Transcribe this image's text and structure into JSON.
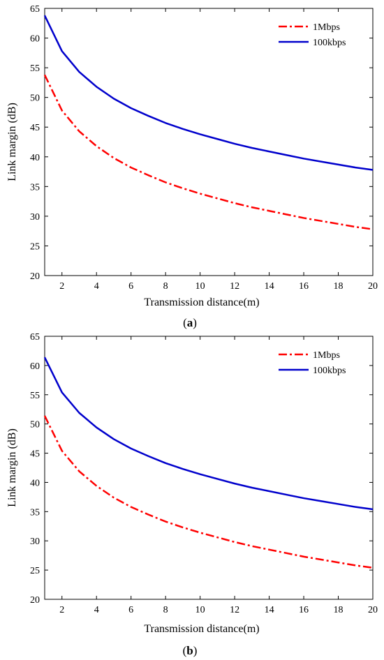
{
  "chart_data": [
    {
      "type": "line",
      "panel_label": "a",
      "xlabel": "Transmission distance(m)",
      "ylabel": "Link margin (dB)",
      "xlim": [
        1,
        20
      ],
      "ylim": [
        20,
        65
      ],
      "xticks": [
        2,
        4,
        6,
        8,
        10,
        12,
        14,
        16,
        18,
        20
      ],
      "yticks": [
        20,
        25,
        30,
        35,
        40,
        45,
        50,
        55,
        60,
        65
      ],
      "grid": false,
      "legend_position": "top-right",
      "x": [
        1,
        2,
        3,
        4,
        5,
        6,
        7,
        8,
        9,
        10,
        11,
        12,
        13,
        14,
        15,
        16,
        17,
        18,
        19,
        20
      ],
      "series": [
        {
          "name": "1Mbps",
          "color": "#ff0000",
          "style": "dash-dot",
          "values": [
            53.8,
            47.8,
            44.3,
            41.8,
            39.8,
            38.2,
            36.9,
            35.7,
            34.7,
            33.8,
            33.0,
            32.2,
            31.5,
            30.9,
            30.3,
            29.7,
            29.2,
            28.7,
            28.2,
            27.8
          ]
        },
        {
          "name": "100kbps",
          "color": "#0000cc",
          "style": "solid",
          "values": [
            63.8,
            57.8,
            54.3,
            51.8,
            49.8,
            48.2,
            46.9,
            45.7,
            44.7,
            43.8,
            43.0,
            42.2,
            41.5,
            40.9,
            40.3,
            39.7,
            39.2,
            38.7,
            38.2,
            37.8
          ]
        }
      ]
    },
    {
      "type": "line",
      "panel_label": "b",
      "xlabel": "Transmission distance(m)",
      "ylabel": "Link margin (dB)",
      "xlim": [
        1,
        20
      ],
      "ylim": [
        20,
        65
      ],
      "xticks": [
        2,
        4,
        6,
        8,
        10,
        12,
        14,
        16,
        18,
        20
      ],
      "yticks": [
        20,
        25,
        30,
        35,
        40,
        45,
        50,
        55,
        60,
        65
      ],
      "grid": false,
      "legend_position": "top-right",
      "x": [
        1,
        2,
        3,
        4,
        5,
        6,
        7,
        8,
        9,
        10,
        11,
        12,
        13,
        14,
        15,
        16,
        17,
        18,
        19,
        20
      ],
      "series": [
        {
          "name": "1Mbps",
          "color": "#ff0000",
          "style": "dash-dot",
          "values": [
            51.4,
            45.4,
            41.9,
            39.4,
            37.4,
            35.8,
            34.5,
            33.3,
            32.3,
            31.4,
            30.6,
            29.8,
            29.1,
            28.5,
            27.9,
            27.3,
            26.8,
            26.3,
            25.8,
            25.4
          ]
        },
        {
          "name": "100kbps",
          "color": "#0000cc",
          "style": "solid",
          "values": [
            61.4,
            55.4,
            51.9,
            49.4,
            47.4,
            45.8,
            44.5,
            43.3,
            42.3,
            41.4,
            40.6,
            39.8,
            39.1,
            38.5,
            37.9,
            37.3,
            36.8,
            36.3,
            35.8,
            35.4
          ]
        }
      ]
    }
  ]
}
